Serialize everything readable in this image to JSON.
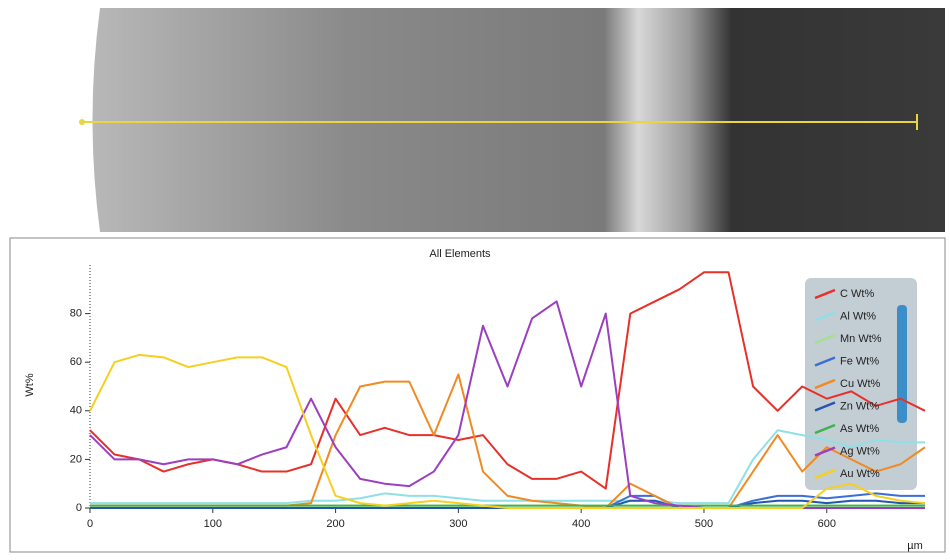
{
  "chart_data": {
    "type": "line",
    "title": "All Elements",
    "ylabel": "Wt%",
    "xlabel": "µm",
    "x": [
      0,
      20,
      40,
      60,
      80,
      100,
      120,
      140,
      160,
      180,
      200,
      220,
      240,
      260,
      280,
      300,
      320,
      340,
      360,
      380,
      400,
      420,
      440,
      460,
      480,
      500,
      520,
      540,
      560,
      580,
      600,
      620,
      640,
      660,
      680
    ],
    "xlim": [
      0,
      680
    ],
    "ylim": [
      0,
      100
    ],
    "xticks": [
      0,
      100,
      200,
      300,
      400,
      500,
      600
    ],
    "yticks": [
      0,
      20,
      40,
      60,
      80
    ],
    "series": [
      {
        "name": "C Wt%",
        "color": "#e8302a",
        "values": [
          32,
          22,
          20,
          15,
          18,
          20,
          18,
          15,
          15,
          18,
          45,
          30,
          33,
          30,
          30,
          28,
          30,
          18,
          12,
          12,
          15,
          8,
          80,
          85,
          90,
          97,
          97,
          50,
          40,
          50,
          45,
          48,
          42,
          45,
          40
        ]
      },
      {
        "name": "Al Wt%",
        "color": "#8fe0e6",
        "values": [
          2,
          2,
          2,
          2,
          2,
          2,
          2,
          2,
          2,
          3,
          3,
          4,
          6,
          5,
          5,
          4,
          3,
          3,
          3,
          3,
          3,
          3,
          3,
          3,
          2,
          2,
          2,
          20,
          32,
          30,
          28,
          25,
          28,
          27,
          27
        ]
      },
      {
        "name": "Mn Wt%",
        "color": "#a5e08a",
        "values": [
          1,
          1,
          1,
          1,
          1,
          1,
          1,
          1,
          1,
          1,
          1,
          1,
          1,
          1,
          1,
          1,
          1,
          1,
          1,
          1,
          1,
          1,
          1,
          1,
          1,
          1,
          1,
          1,
          1,
          1,
          1,
          1,
          1,
          1,
          1
        ]
      },
      {
        "name": "Fe Wt%",
        "color": "#3a6fd8",
        "values": [
          0,
          0,
          0,
          0,
          0,
          0,
          0,
          0,
          0,
          0,
          0,
          0,
          0,
          0,
          0,
          0,
          0,
          0,
          0,
          0,
          0,
          0,
          5,
          5,
          0,
          0,
          0,
          3,
          5,
          5,
          4,
          5,
          6,
          5,
          5
        ]
      },
      {
        "name": "Cu Wt%",
        "color": "#f08a24",
        "values": [
          1,
          1,
          1,
          1,
          1,
          1,
          1,
          1,
          1,
          2,
          30,
          50,
          52,
          52,
          30,
          55,
          15,
          5,
          3,
          2,
          1,
          0,
          10,
          5,
          0,
          0,
          0,
          15,
          30,
          15,
          25,
          20,
          15,
          18,
          25
        ]
      },
      {
        "name": "Zn Wt%",
        "color": "#2456b0",
        "values": [
          0,
          0,
          0,
          0,
          0,
          0,
          0,
          0,
          0,
          0,
          0,
          0,
          0,
          0,
          0,
          0,
          0,
          0,
          0,
          0,
          0,
          0,
          3,
          3,
          0,
          0,
          0,
          2,
          3,
          3,
          2,
          3,
          3,
          2,
          2
        ]
      },
      {
        "name": "As Wt%",
        "color": "#3cb44b",
        "values": [
          1,
          1,
          1,
          1,
          1,
          1,
          1,
          1,
          1,
          1,
          1,
          1,
          1,
          1,
          1,
          1,
          1,
          1,
          1,
          1,
          1,
          1,
          1,
          1,
          1,
          1,
          1,
          1,
          1,
          1,
          1,
          1,
          1,
          1,
          1
        ]
      },
      {
        "name": "Ag Wt%",
        "color": "#9b3fc0",
        "values": [
          30,
          20,
          20,
          18,
          20,
          20,
          18,
          22,
          25,
          45,
          25,
          12,
          10,
          9,
          15,
          30,
          75,
          50,
          78,
          85,
          50,
          80,
          5,
          2,
          1,
          0,
          0,
          0,
          0,
          0,
          0,
          0,
          0,
          0,
          0
        ]
      },
      {
        "name": "Au Wt%",
        "color": "#f5d020",
        "values": [
          40,
          60,
          63,
          62,
          58,
          60,
          62,
          62,
          58,
          30,
          5,
          2,
          1,
          2,
          3,
          2,
          1,
          0,
          0,
          0,
          0,
          0,
          0,
          0,
          0,
          0,
          0,
          0,
          0,
          0,
          8,
          10,
          5,
          3,
          2
        ]
      }
    ]
  }
}
